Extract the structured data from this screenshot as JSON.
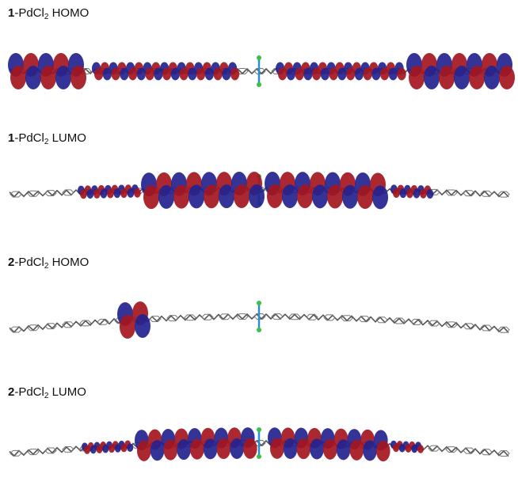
{
  "panels": [
    {
      "compound": "1",
      "ligand": "-PdCl",
      "subscript": "2",
      "orbital": "HOMO"
    },
    {
      "compound": "1",
      "ligand": "-PdCl",
      "subscript": "2",
      "orbital": "LUMO"
    },
    {
      "compound": "2",
      "ligand": "-PdCl",
      "subscript": "2",
      "orbital": "HOMO"
    },
    {
      "compound": "2",
      "ligand": "-PdCl",
      "subscript": "2",
      "orbital": "LUMO"
    }
  ]
}
